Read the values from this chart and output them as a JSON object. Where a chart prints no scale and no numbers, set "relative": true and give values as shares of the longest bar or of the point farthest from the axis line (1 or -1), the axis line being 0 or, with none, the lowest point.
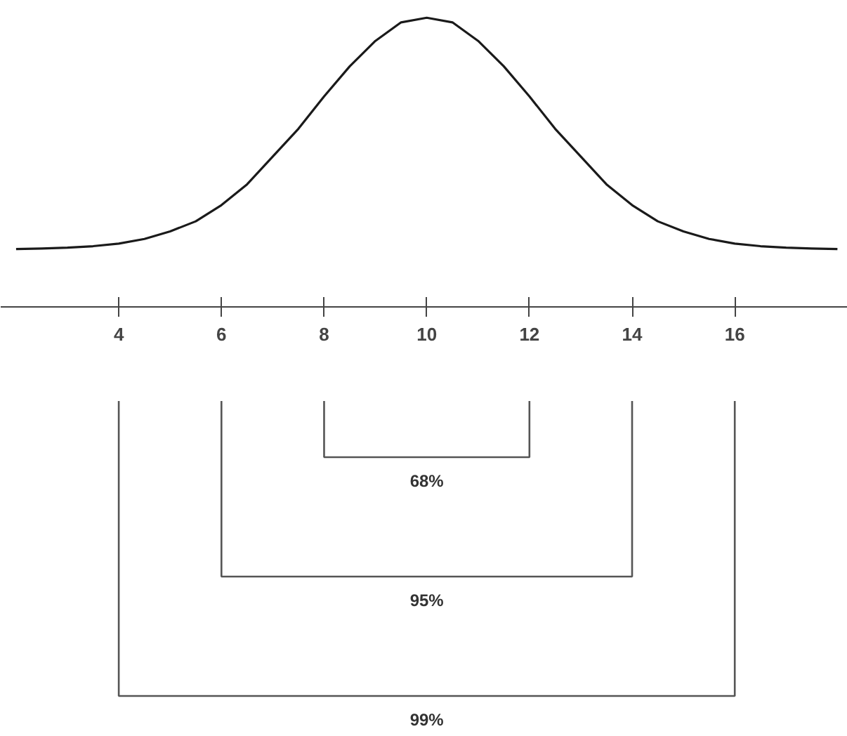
{
  "chart_data": {
    "type": "line",
    "relative": true,
    "x": [
      2,
      2.5,
      3,
      3.5,
      4,
      4.5,
      5,
      5.5,
      6,
      6.5,
      7,
      7.5,
      8,
      8.5,
      9,
      9.5,
      10,
      10.5,
      11,
      11.5,
      12,
      12.5,
      13,
      13.5,
      14,
      14.5,
      15,
      15.5,
      16,
      16.5,
      17,
      17.5,
      18
    ],
    "series": [
      {
        "color": "#1a1a1a",
        "values": [
          0.2,
          0.202,
          0.205,
          0.21,
          0.219,
          0.235,
          0.261,
          0.296,
          0.352,
          0.424,
          0.52,
          0.616,
          0.728,
          0.832,
          0.92,
          0.984,
          1,
          0.984,
          0.92,
          0.832,
          0.728,
          0.616,
          0.52,
          0.424,
          0.352,
          0.296,
          0.261,
          0.235,
          0.219,
          0.21,
          0.205,
          0.202,
          0.2
        ]
      }
    ],
    "xlim": [
      1.7,
      18.2
    ],
    "xticks": [
      4,
      6,
      8,
      10,
      12,
      14,
      16
    ],
    "annotations": [
      "68%",
      "95%",
      "99%"
    ],
    "grid": false,
    "marker": "none",
    "line_style": "solid"
  }
}
